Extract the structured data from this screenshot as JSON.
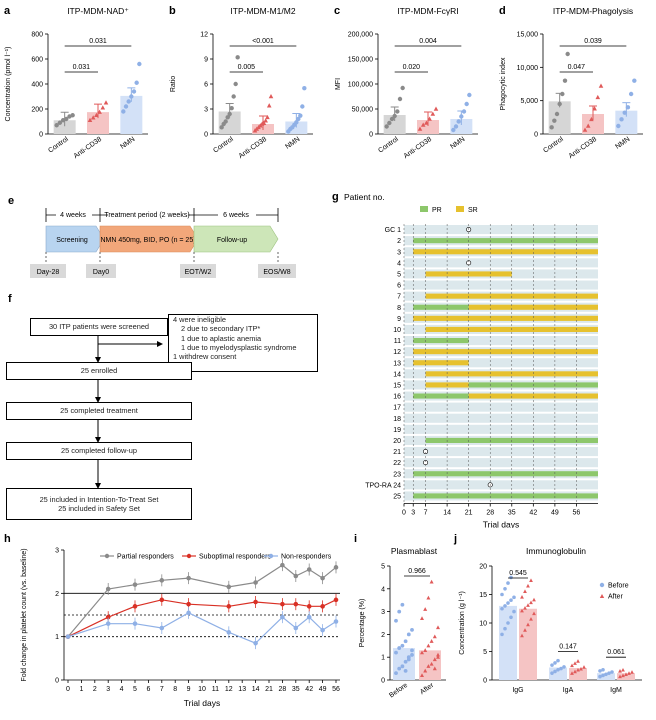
{
  "panel_labels": {
    "a": "a",
    "b": "b",
    "c": "c",
    "d": "d",
    "e": "e",
    "f": "f",
    "g": "g",
    "h": "h",
    "i": "i",
    "j": "j"
  },
  "colors": {
    "control": "#8a8a8a",
    "anti": "#e05a5a",
    "nmn": "#8fb0e6",
    "pr": "#8dc76b",
    "sr": "#e6c12e",
    "row_bg": "#dce8ec"
  },
  "chart_data": [
    {
      "id": "a",
      "type": "bar",
      "title": "ITP-MDM-NAD⁺",
      "ylabel": "Concentration (pmol l⁻¹)",
      "categories": [
        "Control",
        "Anti-CD38",
        "NMN"
      ],
      "values": [
        110,
        175,
        305
      ],
      "ylim": [
        0,
        800
      ],
      "yticks": [
        "0",
        "200",
        "400",
        "600",
        "800"
      ],
      "points": [
        [
          70,
          90,
          110,
          120,
          140,
          150
        ],
        [
          110,
          130,
          150,
          175,
          210,
          250
        ],
        [
          180,
          220,
          260,
          300,
          340,
          410,
          560
        ]
      ],
      "pvalues": [
        "0.031",
        "0.031"
      ]
    },
    {
      "id": "b",
      "type": "bar",
      "title": "ITP-MDM-M1/M2",
      "ylabel": "Ratio",
      "categories": [
        "Control",
        "Anti-CD38",
        "NMN"
      ],
      "values": [
        2.7,
        1.2,
        1.5
      ],
      "ylim": [
        0,
        12
      ],
      "yticks": [
        "0",
        "3",
        "6",
        "9",
        "12"
      ],
      "points": [
        [
          0.8,
          1.2,
          1.5,
          2.0,
          2.4,
          3.1,
          4.5,
          6.0,
          9.2
        ],
        [
          0.4,
          0.6,
          0.8,
          1.0,
          1.2,
          1.3,
          1.6,
          2.0,
          3.4,
          4.5
        ],
        [
          0.3,
          0.6,
          0.8,
          1.1,
          1.4,
          1.8,
          2.2,
          3.3,
          5.5
        ]
      ],
      "pvalues": [
        "0.005",
        "<0.001"
      ]
    },
    {
      "id": "c",
      "type": "bar",
      "title": "ITP-MDM-FcγRI",
      "ylabel": "MFI",
      "categories": [
        "Control",
        "Anti-CD38",
        "NMN"
      ],
      "values": [
        38000,
        28000,
        30000
      ],
      "ylim": [
        0,
        200000
      ],
      "yticks": [
        "0",
        "50,000",
        "100,000",
        "150,000",
        "200,000"
      ],
      "points": [
        [
          15000,
          22000,
          30000,
          36000,
          45000,
          70000,
          92000
        ],
        [
          10000,
          18000,
          22000,
          30000,
          40000,
          50000
        ],
        [
          8000,
          15000,
          25000,
          35000,
          45000,
          60000,
          78000
        ]
      ],
      "pvalues": [
        "0.020",
        "0.004"
      ]
    },
    {
      "id": "d",
      "type": "bar",
      "title": "ITP-MDM-Phagolysis",
      "ylabel": "Phagocytic index",
      "categories": [
        "Control",
        "Anti-CD38",
        "NMN"
      ],
      "values": [
        4900,
        3000,
        3500
      ],
      "ylim": [
        0,
        15000
      ],
      "yticks": [
        "0",
        "5,000",
        "10,000",
        "15,000"
      ],
      "points": [
        [
          1000,
          2000,
          3000,
          4500,
          6000,
          8000,
          12000
        ],
        [
          600,
          1200,
          2200,
          3800,
          5500,
          7200
        ],
        [
          1200,
          2200,
          3200,
          4000,
          6000,
          8000
        ]
      ],
      "pvalues": [
        "0.047",
        "0.039"
      ]
    },
    {
      "id": "g",
      "type": "timeline",
      "title": "Patient no.",
      "xlabel": "Trial days",
      "xticks": [
        "0",
        "3",
        "7",
        "14",
        "21",
        "28",
        "35",
        "42",
        "49",
        "56"
      ],
      "legend": [
        "PR",
        "SR"
      ],
      "rows": [
        "GC 1",
        "2",
        "3",
        "4",
        "5",
        "6",
        "7",
        "8",
        "9",
        "10",
        "11",
        "12",
        "13",
        "14",
        "15",
        "16",
        "17",
        "18",
        "19",
        "20",
        "21",
        "22",
        "23",
        "TPO-RA 24",
        "25"
      ]
    },
    {
      "id": "h",
      "type": "line",
      "ylabel": "Fold change in platelet count (vs. baseline)",
      "xlabel": "Trial days",
      "ylim": [
        0,
        3
      ],
      "yticks": [
        "0",
        "1",
        "2",
        "3"
      ],
      "xticks": [
        "0",
        "1",
        "2",
        "3",
        "4",
        "5",
        "6",
        "7",
        "8",
        "9",
        "10",
        "11",
        "12",
        "13",
        "14",
        "21",
        "28",
        "35",
        "42",
        "49",
        "56"
      ],
      "series": [
        {
          "name": "Partial responders",
          "values": [
            1,
            2.1,
            2.2,
            2.3,
            2.35,
            2.15,
            2.25,
            2.65,
            2.4,
            2.55,
            2.35,
            2.6
          ]
        },
        {
          "name": "Suboptimal responders",
          "values": [
            1,
            1.45,
            1.7,
            1.85,
            1.75,
            1.7,
            1.8,
            1.75,
            1.75,
            1.7,
            1.7,
            1.85
          ]
        },
        {
          "name": "Non-responders",
          "values": [
            1,
            1.3,
            1.3,
            1.2,
            1.55,
            1.1,
            0.85,
            1.45,
            1.2,
            1.45,
            1.15,
            1.35
          ]
        }
      ]
    },
    {
      "id": "i",
      "type": "bar",
      "title": "Plasmablast",
      "ylabel": "Percentage (%)",
      "categories": [
        "Before",
        "After"
      ],
      "values": [
        1.4,
        1.3
      ],
      "ylim": [
        0,
        5
      ],
      "yticks": [
        "0",
        "1",
        "2",
        "3",
        "4",
        "5"
      ],
      "pvalues": [
        "0.966"
      ]
    },
    {
      "id": "j",
      "type": "bar",
      "title": "Immunoglobulin",
      "ylabel": "Concentration (g l⁻¹)",
      "categories": [
        "IgG",
        "IgA",
        "IgM"
      ],
      "series": [
        {
          "name": "Before",
          "values": [
            13,
            2.2,
            1.2
          ]
        },
        {
          "name": "After",
          "values": [
            12.5,
            2.1,
            1.2
          ]
        }
      ],
      "ylim": [
        0,
        20
      ],
      "yticks": [
        "0",
        "5",
        "10",
        "15",
        "20"
      ],
      "pvalues": [
        "0.545",
        "0.147",
        "0.061"
      ]
    }
  ],
  "timeline_e": {
    "w4": "4 weeks",
    "treat": "Treatment period (2 weeks)",
    "w6": "6 weeks",
    "screening": "Screening",
    "nmn": "NMN 450mg, BID, PO (n = 25)",
    "follow": "Follow-up",
    "d28": "Day-28",
    "d0": "Day0",
    "eot": "EOT/W2",
    "eos": "EOS/W8"
  },
  "flow_f": {
    "screened": "30 ITP patients were screened",
    "inel1": "4 were ineligible",
    "inel2": "2 due to secondary ITP*",
    "inel3": "1 due to aplastic anemia",
    "inel4": "1 due to myelodysplastic syndrome",
    "inel5": "1 withdrew consent",
    "enrolled": "25 enrolled",
    "treat": "25 completed treatment",
    "follow": "25 completed follow-up",
    "itt": "25 included in Intention-To-Treat Set",
    "safety": "25 included in Safety Set"
  }
}
